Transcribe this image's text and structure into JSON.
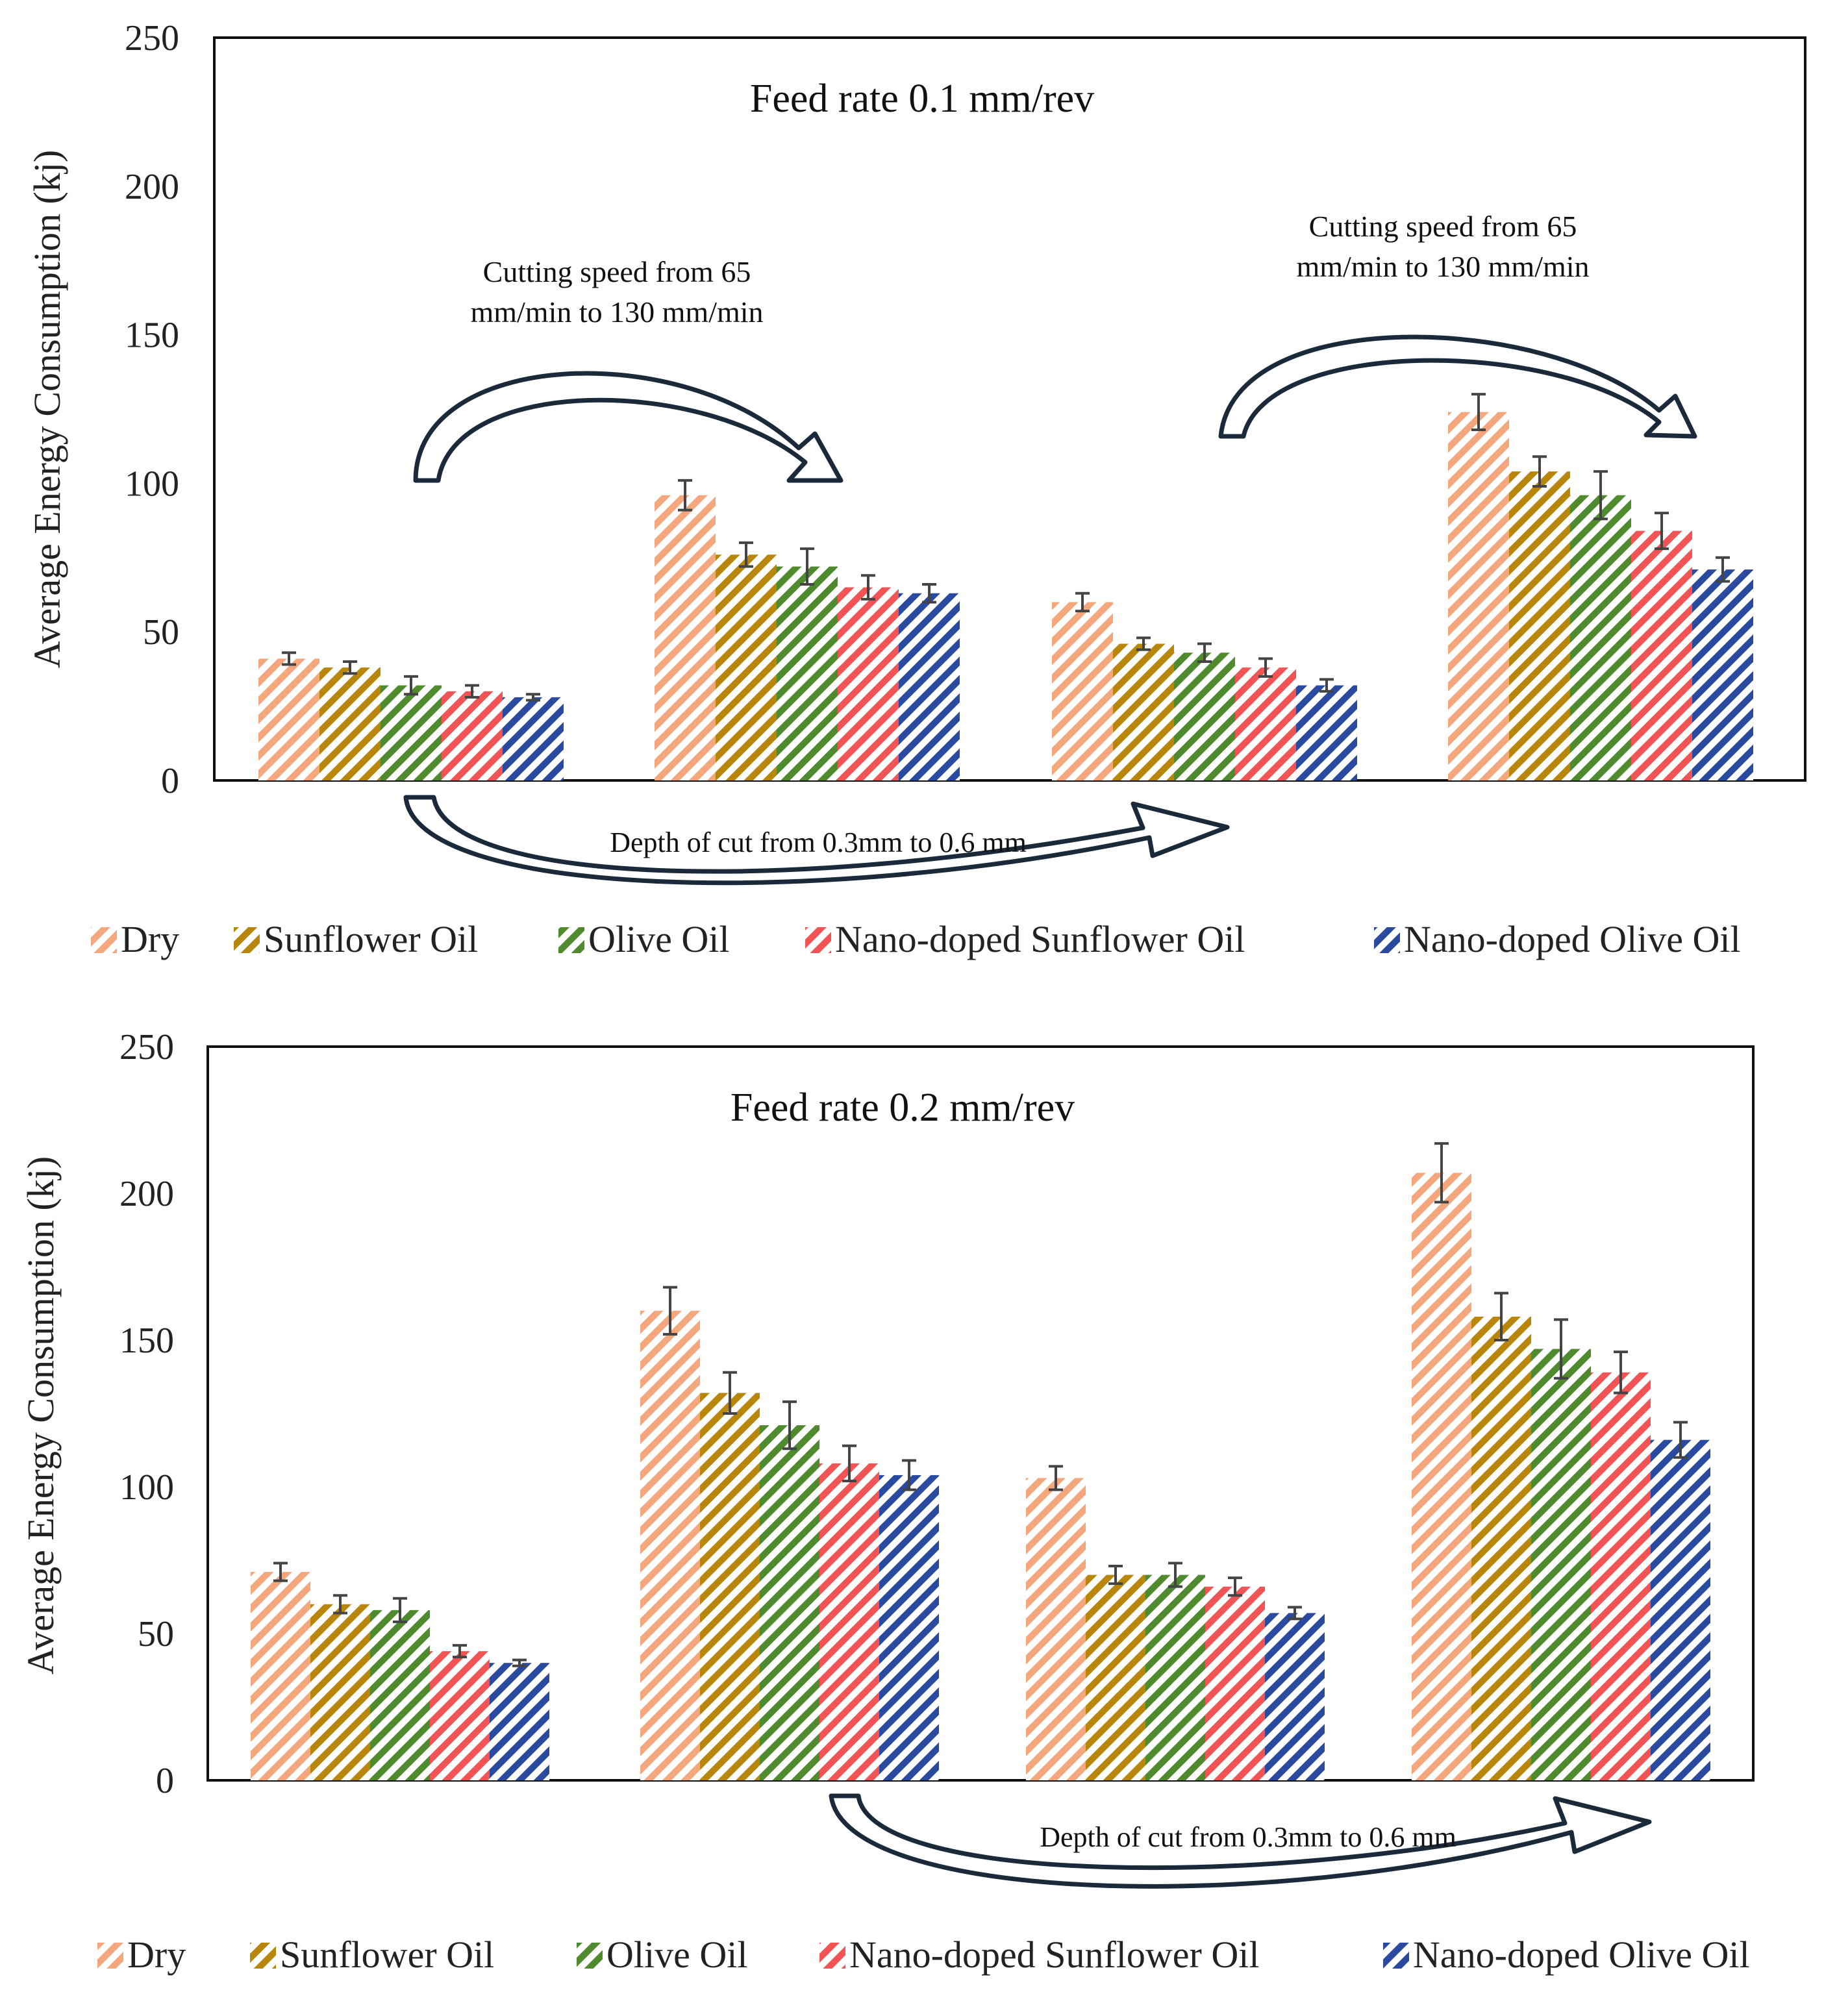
{
  "chart_data": [
    {
      "type": "bar",
      "title": "Feed rate 0.1 mm/rev",
      "ylabel": "Average Energy Consumption (kj)",
      "xlabel": "",
      "ylim": [
        0,
        250
      ],
      "yticks": [
        0,
        50,
        100,
        150,
        200,
        250
      ],
      "ytick_labels": [
        "0",
        "50",
        "100",
        "150",
        "200",
        "250"
      ],
      "groups": 4,
      "series": [
        {
          "name": "Dry",
          "color": "#f4a77c",
          "values": [
            41,
            96,
            60,
            124
          ],
          "errors": [
            2,
            5,
            3,
            6
          ]
        },
        {
          "name": "Sunflower Oil",
          "color": "#b8860b",
          "values": [
            38,
            76,
            46,
            104
          ],
          "errors": [
            2,
            4,
            2,
            5
          ]
        },
        {
          "name": "Olive Oil",
          "color": "#4f8a2e",
          "values": [
            32,
            72,
            43,
            96
          ],
          "errors": [
            3,
            6,
            3,
            8
          ]
        },
        {
          "name": "Nano-doped Sunflower Oil",
          "color": "#f05454",
          "values": [
            30,
            65,
            38,
            84
          ],
          "errors": [
            2,
            4,
            3,
            6
          ]
        },
        {
          "name": "Nano-doped Olive Oil",
          "color": "#2a4aa0",
          "values": [
            28,
            63,
            32,
            71
          ],
          "errors": [
            1,
            3,
            2,
            4
          ]
        }
      ],
      "annotations": [
        {
          "id": "speed1",
          "text_lines": [
            "Cutting speed from 65",
            "mm/min to 130 mm/min"
          ]
        },
        {
          "id": "speed2",
          "text_lines": [
            "Cutting speed from 65",
            "mm/min to 130 mm/min"
          ]
        },
        {
          "id": "depth",
          "text_lines": [
            "Depth of cut from 0.3mm to 0.6 mm"
          ]
        }
      ],
      "legend": [
        "Dry",
        "Sunflower Oil",
        "Olive Oil",
        "Nano-doped Sunflower Oil",
        "Nano-doped Olive Oil"
      ]
    },
    {
      "type": "bar",
      "title": "Feed rate 0.2 mm/rev",
      "ylabel": "Average Energy Consumption (kj)",
      "xlabel": "",
      "ylim": [
        0,
        250
      ],
      "yticks": [
        0,
        50,
        100,
        150,
        200,
        250
      ],
      "ytick_labels": [
        "0",
        "50",
        "100",
        "150",
        "200",
        "250"
      ],
      "groups": 4,
      "series": [
        {
          "name": "Dry",
          "color": "#f4a77c",
          "values": [
            71,
            160,
            103,
            207
          ],
          "errors": [
            3,
            8,
            4,
            10
          ]
        },
        {
          "name": "Sunflower Oil",
          "color": "#b8860b",
          "values": [
            60,
            132,
            70,
            158
          ],
          "errors": [
            3,
            7,
            3,
            8
          ]
        },
        {
          "name": "Olive Oil",
          "color": "#4f8a2e",
          "values": [
            58,
            121,
            70,
            147
          ],
          "errors": [
            4,
            8,
            4,
            10
          ]
        },
        {
          "name": "Nano-doped Sunflower Oil",
          "color": "#f05454",
          "values": [
            44,
            108,
            66,
            139
          ],
          "errors": [
            2,
            6,
            3,
            7
          ]
        },
        {
          "name": "Nano-doped Olive Oil",
          "color": "#2a4aa0",
          "values": [
            40,
            104,
            57,
            116
          ],
          "errors": [
            1,
            5,
            2,
            6
          ]
        }
      ],
      "annotations": [
        {
          "id": "depth",
          "text_lines": [
            "Depth of cut from 0.3mm to 0.6 mm"
          ]
        }
      ],
      "legend": [
        "Dry",
        "Sunflower Oil",
        "Olive Oil",
        "Nano-doped Sunflower Oil",
        "Nano-doped Olive Oil"
      ]
    }
  ]
}
